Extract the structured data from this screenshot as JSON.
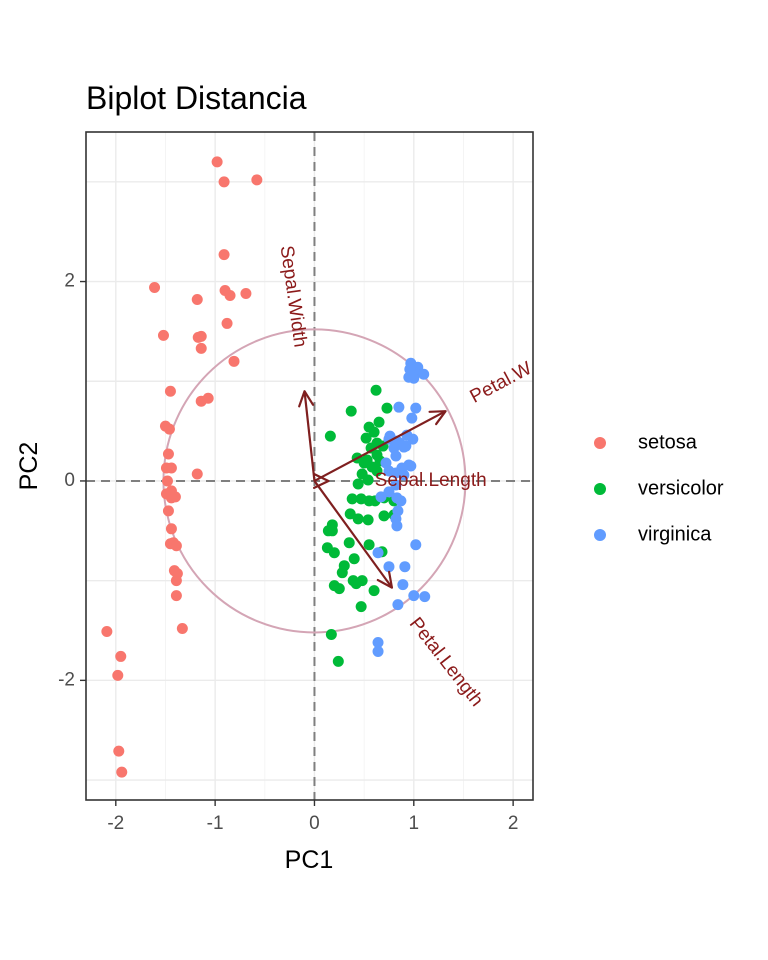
{
  "chart_data": {
    "type": "scatter",
    "title": "Biplot Distancia",
    "xlabel": "PC1",
    "ylabel": "PC2",
    "xlim": [
      -2.3,
      2.2
    ],
    "ylim": [
      -3.2,
      3.5
    ],
    "xticks": [
      -2,
      -1,
      0,
      1,
      2
    ],
    "yticks": [
      -2,
      0,
      2
    ],
    "xtick_labels": [
      "-2",
      "-1",
      "0",
      "1",
      "2"
    ],
    "ytick_labels": [
      "-2",
      "0",
      "2"
    ],
    "grid": true,
    "reference_lines": {
      "x": 0,
      "y": 0,
      "style": "dashed",
      "color": "#7f7f7f"
    },
    "legend_position": "right",
    "circle": {
      "center": [
        0.0,
        0.0
      ],
      "radius": 1.52,
      "color": "#d4a5b5"
    },
    "loadings": [
      {
        "name": "Sepal.Width",
        "x": -0.1,
        "y": 0.9,
        "label_x": -0.22,
        "label_y": 1.85,
        "label_angle": 82
      },
      {
        "name": "Petal.W",
        "x": 1.32,
        "y": 0.7,
        "label_x": 1.88,
        "label_y": 0.98,
        "label_angle": -28
      },
      {
        "name": "Sepal.Length",
        "x": 0.0,
        "y": 0.0,
        "label_x": 1.17,
        "label_y": 0.0,
        "label_angle": 0
      },
      {
        "name": "Petal.Length",
        "x": 0.78,
        "y": -1.07,
        "label_x": 1.32,
        "label_y": -1.82,
        "label_angle": 52
      }
    ],
    "loading_color": "#7f1f1f",
    "series": [
      {
        "name": "setosa",
        "color": "#F8766D",
        "points": [
          [
            -0.98,
            3.2
          ],
          [
            -0.91,
            3.0
          ],
          [
            -0.58,
            3.02
          ],
          [
            -0.91,
            2.27
          ],
          [
            -1.61,
            1.94
          ],
          [
            -1.18,
            1.82
          ],
          [
            -0.9,
            1.91
          ],
          [
            -0.85,
            1.86
          ],
          [
            -0.69,
            1.88
          ],
          [
            -1.52,
            1.46
          ],
          [
            -1.14,
            1.45
          ],
          [
            -1.17,
            1.44
          ],
          [
            -1.14,
            1.33
          ],
          [
            -0.88,
            1.58
          ],
          [
            -0.81,
            1.2
          ],
          [
            -1.45,
            0.9
          ],
          [
            -1.14,
            0.8
          ],
          [
            -1.07,
            0.83
          ],
          [
            -1.5,
            0.55
          ],
          [
            -1.46,
            0.52
          ],
          [
            -1.47,
            0.27
          ],
          [
            -1.49,
            0.13
          ],
          [
            -1.44,
            0.13
          ],
          [
            -1.48,
            0.0
          ],
          [
            -1.18,
            0.07
          ],
          [
            -1.44,
            -0.1
          ],
          [
            -1.49,
            -0.13
          ],
          [
            -1.4,
            -0.16
          ],
          [
            -1.44,
            -0.17
          ],
          [
            -1.47,
            -0.3
          ],
          [
            -1.44,
            -0.48
          ],
          [
            -1.45,
            -0.63
          ],
          [
            -1.42,
            -0.62
          ],
          [
            -1.39,
            -0.65
          ],
          [
            -1.38,
            -0.93
          ],
          [
            -1.41,
            -0.9
          ],
          [
            -1.39,
            -1.0
          ],
          [
            -1.39,
            -1.15
          ],
          [
            -1.33,
            -1.48
          ],
          [
            -2.09,
            -1.51
          ],
          [
            -1.95,
            -1.76
          ],
          [
            -1.98,
            -1.95
          ],
          [
            -1.97,
            -2.71
          ],
          [
            -1.94,
            -2.92
          ]
        ]
      },
      {
        "name": "versicolor",
        "color": "#00BA38",
        "points": [
          [
            0.62,
            0.91
          ],
          [
            0.73,
            0.73
          ],
          [
            0.37,
            0.7
          ],
          [
            0.65,
            0.59
          ],
          [
            0.55,
            0.54
          ],
          [
            0.16,
            0.45
          ],
          [
            0.6,
            0.49
          ],
          [
            0.52,
            0.43
          ],
          [
            0.63,
            0.38
          ],
          [
            0.69,
            0.35
          ],
          [
            0.57,
            0.33
          ],
          [
            0.63,
            0.26
          ],
          [
            0.66,
            0.2
          ],
          [
            0.53,
            0.21
          ],
          [
            0.43,
            0.23
          ],
          [
            0.5,
            0.18
          ],
          [
            0.58,
            0.14
          ],
          [
            0.63,
            0.1
          ],
          [
            0.48,
            0.07
          ],
          [
            0.54,
            0.01
          ],
          [
            0.44,
            -0.03
          ],
          [
            0.38,
            -0.18
          ],
          [
            0.47,
            -0.18
          ],
          [
            0.55,
            -0.2
          ],
          [
            0.61,
            -0.2
          ],
          [
            0.7,
            -0.17
          ],
          [
            0.36,
            -0.33
          ],
          [
            0.44,
            -0.38
          ],
          [
            0.54,
            -0.39
          ],
          [
            0.7,
            -0.35
          ],
          [
            0.8,
            -0.2
          ],
          [
            0.8,
            -0.34
          ],
          [
            0.18,
            -0.44
          ],
          [
            0.14,
            -0.5
          ],
          [
            0.18,
            -0.5
          ],
          [
            0.2,
            -0.72
          ],
          [
            0.13,
            -0.67
          ],
          [
            0.35,
            -0.62
          ],
          [
            0.55,
            -0.64
          ],
          [
            0.68,
            -0.71
          ],
          [
            0.4,
            -0.78
          ],
          [
            0.3,
            -0.85
          ],
          [
            0.28,
            -0.92
          ],
          [
            0.39,
            -1.0
          ],
          [
            0.42,
            -1.03
          ],
          [
            0.2,
            -1.05
          ],
          [
            0.25,
            -1.08
          ],
          [
            0.48,
            -1.0
          ],
          [
            0.6,
            -1.1
          ],
          [
            0.47,
            -1.26
          ],
          [
            0.17,
            -1.54
          ],
          [
            0.24,
            -1.81
          ]
        ]
      },
      {
        "name": "virginica",
        "color": "#619CFF",
        "points": [
          [
            0.97,
            1.18
          ],
          [
            1.04,
            1.14
          ],
          [
            1.02,
            1.08
          ],
          [
            1.1,
            1.07
          ],
          [
            0.95,
            1.04
          ],
          [
            0.96,
            1.12
          ],
          [
            1.0,
            1.03
          ],
          [
            0.85,
            0.74
          ],
          [
            1.02,
            0.73
          ],
          [
            0.98,
            0.63
          ],
          [
            0.75,
            0.42
          ],
          [
            0.83,
            0.4
          ],
          [
            0.86,
            0.38
          ],
          [
            0.76,
            0.45
          ],
          [
            0.93,
            0.46
          ],
          [
            0.99,
            0.42
          ],
          [
            0.92,
            0.35
          ],
          [
            0.9,
            0.34
          ],
          [
            0.8,
            0.33
          ],
          [
            0.82,
            0.25
          ],
          [
            0.72,
            0.18
          ],
          [
            0.75,
            0.1
          ],
          [
            0.95,
            0.16
          ],
          [
            0.97,
            0.15
          ],
          [
            0.88,
            0.13
          ],
          [
            0.82,
            0.08
          ],
          [
            0.9,
            0.06
          ],
          [
            0.82,
            -0.04
          ],
          [
            0.75,
            -0.11
          ],
          [
            0.67,
            -0.16
          ],
          [
            0.83,
            -0.17
          ],
          [
            0.87,
            -0.2
          ],
          [
            0.84,
            -0.3
          ],
          [
            0.82,
            -0.38
          ],
          [
            0.83,
            -0.45
          ],
          [
            1.02,
            -0.64
          ],
          [
            0.64,
            -0.72
          ],
          [
            0.75,
            -0.86
          ],
          [
            0.91,
            -0.86
          ],
          [
            0.89,
            -1.04
          ],
          [
            1.0,
            -1.15
          ],
          [
            1.11,
            -1.16
          ],
          [
            0.84,
            -1.24
          ],
          [
            0.64,
            -1.62
          ],
          [
            0.64,
            -1.71
          ]
        ]
      }
    ]
  }
}
